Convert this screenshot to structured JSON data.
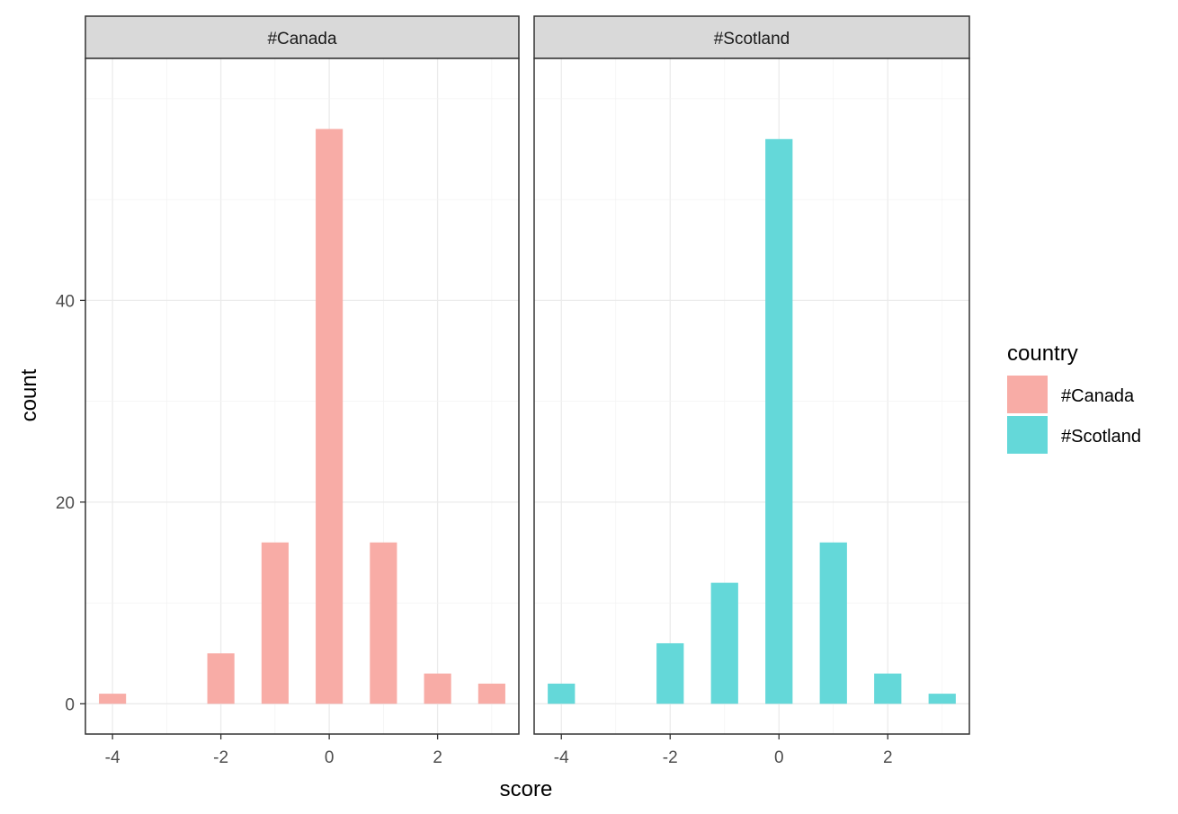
{
  "chart_data": {
    "type": "bar",
    "xlabel": "score",
    "ylabel": "count",
    "xlim": [
      -4.5,
      3.5
    ],
    "ylim": [
      -3,
      64
    ],
    "x_ticks": [
      -4,
      -2,
      0,
      2
    ],
    "y_ticks": [
      0,
      20,
      40
    ],
    "grid": true,
    "legend": {
      "title": "country",
      "position": "right",
      "entries": [
        {
          "label": "#Canada",
          "color": "#f8aca6"
        },
        {
          "label": "#Scotland",
          "color": "#64d8d9"
        }
      ]
    },
    "facets": [
      {
        "label": "#Canada",
        "color": "#f8aca6",
        "x": [
          -4,
          -3,
          -2,
          -1,
          0,
          1,
          2,
          3
        ],
        "values": [
          1,
          0,
          5,
          16,
          57,
          16,
          3,
          2
        ]
      },
      {
        "label": "#Scotland",
        "color": "#64d8d9",
        "x": [
          -4,
          -3,
          -2,
          -1,
          0,
          1,
          2,
          3
        ],
        "values": [
          2,
          0,
          6,
          12,
          56,
          16,
          3,
          1
        ]
      }
    ]
  }
}
